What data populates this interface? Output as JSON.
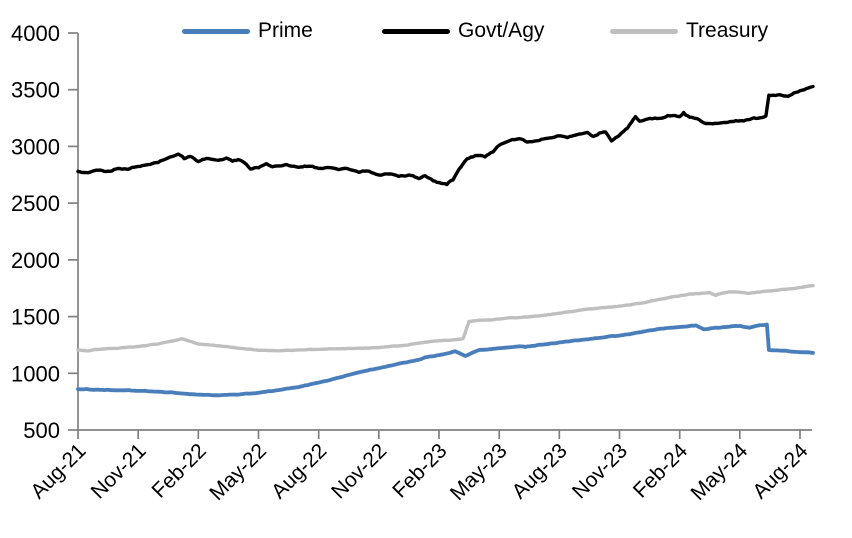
{
  "chart_data": {
    "type": "line",
    "title": "",
    "xlabel": "",
    "ylabel": "",
    "ylim": [
      500,
      4000
    ],
    "yticks": [
      500,
      1000,
      1500,
      2000,
      2500,
      3000,
      3500,
      4000
    ],
    "xtick_labels": [
      "Aug-21",
      "Nov-21",
      "Feb-22",
      "May-22",
      "Aug-22",
      "Nov-22",
      "Feb-23",
      "May-23",
      "Aug-23",
      "Nov-23",
      "Feb-24",
      "May-24",
      "Aug-24"
    ],
    "xtick_positions_months": [
      0,
      3,
      6,
      9,
      12,
      15,
      18,
      21,
      24,
      27,
      30,
      33,
      36
    ],
    "x_unit": "months since Aug-2021",
    "grid": "off",
    "legend_position": "top",
    "axis_color": "#808080",
    "text_color": "#000000",
    "background_color": "#ffffff",
    "series": [
      {
        "name": "Prime",
        "color": "#4a7ebb",
        "points": [
          [
            0,
            860
          ],
          [
            1,
            855
          ],
          [
            2,
            850
          ],
          [
            3,
            845
          ],
          [
            4,
            838
          ],
          [
            5,
            825
          ],
          [
            6,
            812
          ],
          [
            7,
            806
          ],
          [
            8,
            812
          ],
          [
            9,
            828
          ],
          [
            10,
            852
          ],
          [
            11,
            878
          ],
          [
            12,
            918
          ],
          [
            13,
            962
          ],
          [
            14,
            1008
          ],
          [
            15,
            1045
          ],
          [
            16,
            1085
          ],
          [
            17,
            1120
          ],
          [
            17.3,
            1140
          ],
          [
            18,
            1160
          ],
          [
            18.8,
            1195
          ],
          [
            19.3,
            1152
          ],
          [
            20,
            1205
          ],
          [
            20.5,
            1212
          ],
          [
            21,
            1222
          ],
          [
            21.5,
            1228
          ],
          [
            22,
            1238
          ],
          [
            22.3,
            1232
          ],
          [
            23,
            1252
          ],
          [
            23.5,
            1260
          ],
          [
            24,
            1272
          ],
          [
            25,
            1292
          ],
          [
            26,
            1312
          ],
          [
            27,
            1332
          ],
          [
            27.5,
            1345
          ],
          [
            28,
            1362
          ],
          [
            28.5,
            1378
          ],
          [
            29,
            1392
          ],
          [
            29.5,
            1400
          ],
          [
            30,
            1408
          ],
          [
            30.8,
            1422
          ],
          [
            31.2,
            1388
          ],
          [
            31.6,
            1398
          ],
          [
            32,
            1402
          ],
          [
            32.5,
            1412
          ],
          [
            33,
            1418
          ],
          [
            33.5,
            1402
          ],
          [
            34,
            1425
          ],
          [
            34.35,
            1430
          ],
          [
            34.45,
            1205
          ],
          [
            35,
            1200
          ],
          [
            35.5,
            1193
          ],
          [
            36,
            1186
          ],
          [
            36.65,
            1180
          ]
        ]
      },
      {
        "name": "Govt/Agy",
        "color": "#000000",
        "points": [
          [
            0,
            2780
          ],
          [
            0.5,
            2768
          ],
          [
            1,
            2790
          ],
          [
            1.5,
            2782
          ],
          [
            2,
            2806
          ],
          [
            2.5,
            2798
          ],
          [
            3,
            2824
          ],
          [
            3.5,
            2840
          ],
          [
            4,
            2858
          ],
          [
            4.5,
            2900
          ],
          [
            5,
            2932
          ],
          [
            5.3,
            2892
          ],
          [
            5.6,
            2912
          ],
          [
            6,
            2866
          ],
          [
            6.4,
            2894
          ],
          [
            7,
            2878
          ],
          [
            7.4,
            2898
          ],
          [
            7.7,
            2870
          ],
          [
            8,
            2884
          ],
          [
            8.3,
            2856
          ],
          [
            8.6,
            2800
          ],
          [
            9,
            2812
          ],
          [
            9.4,
            2848
          ],
          [
            9.7,
            2820
          ],
          [
            10,
            2828
          ],
          [
            10.4,
            2840
          ],
          [
            11,
            2816
          ],
          [
            11.5,
            2826
          ],
          [
            12,
            2806
          ],
          [
            12.4,
            2814
          ],
          [
            13,
            2796
          ],
          [
            13.4,
            2806
          ],
          [
            14,
            2772
          ],
          [
            14.4,
            2784
          ],
          [
            15,
            2748
          ],
          [
            15.4,
            2758
          ],
          [
            16,
            2736
          ],
          [
            16.5,
            2748
          ],
          [
            17,
            2716
          ],
          [
            17.3,
            2742
          ],
          [
            17.7,
            2698
          ],
          [
            18,
            2682
          ],
          [
            18.4,
            2664
          ],
          [
            18.7,
            2705
          ],
          [
            19,
            2800
          ],
          [
            19.4,
            2890
          ],
          [
            19.7,
            2908
          ],
          [
            20,
            2920
          ],
          [
            20.3,
            2908
          ],
          [
            20.7,
            2952
          ],
          [
            21,
            3010
          ],
          [
            21.3,
            3035
          ],
          [
            22,
            3068
          ],
          [
            22.4,
            3038
          ],
          [
            23,
            3052
          ],
          [
            23.4,
            3072
          ],
          [
            24,
            3094
          ],
          [
            24.4,
            3078
          ],
          [
            25,
            3110
          ],
          [
            25.4,
            3124
          ],
          [
            25.7,
            3088
          ],
          [
            26,
            3118
          ],
          [
            26.3,
            3128
          ],
          [
            26.6,
            3048
          ],
          [
            27,
            3098
          ],
          [
            27.4,
            3162
          ],
          [
            27.8,
            3262
          ],
          [
            28,
            3222
          ],
          [
            28.4,
            3242
          ],
          [
            29,
            3248
          ],
          [
            29.4,
            3272
          ],
          [
            30,
            3262
          ],
          [
            30.2,
            3298
          ],
          [
            30.5,
            3258
          ],
          [
            31,
            3232
          ],
          [
            31.3,
            3202
          ],
          [
            32,
            3206
          ],
          [
            32.5,
            3218
          ],
          [
            33,
            3226
          ],
          [
            33.5,
            3238
          ],
          [
            34,
            3252
          ],
          [
            34.3,
            3268
          ],
          [
            34.45,
            3452
          ],
          [
            35,
            3456
          ],
          [
            35.4,
            3442
          ],
          [
            35.7,
            3472
          ],
          [
            36,
            3490
          ],
          [
            36.3,
            3508
          ],
          [
            36.65,
            3528
          ]
        ]
      },
      {
        "name": "Treasury",
        "color": "#bfbfbf",
        "points": [
          [
            0,
            1205
          ],
          [
            0.5,
            1197
          ],
          [
            1,
            1210
          ],
          [
            2,
            1220
          ],
          [
            3,
            1236
          ],
          [
            4,
            1258
          ],
          [
            5,
            1296
          ],
          [
            5.2,
            1304
          ],
          [
            6,
            1258
          ],
          [
            7,
            1242
          ],
          [
            8,
            1221
          ],
          [
            9,
            1203
          ],
          [
            10,
            1198
          ],
          [
            11,
            1206
          ],
          [
            12,
            1211
          ],
          [
            13,
            1216
          ],
          [
            14,
            1221
          ],
          [
            15,
            1226
          ],
          [
            16,
            1241
          ],
          [
            17,
            1266
          ],
          [
            18,
            1286
          ],
          [
            19,
            1300
          ],
          [
            19.2,
            1306
          ],
          [
            19.5,
            1458
          ],
          [
            20,
            1468
          ],
          [
            21,
            1479
          ],
          [
            22,
            1491
          ],
          [
            23,
            1506
          ],
          [
            24,
            1530
          ],
          [
            25,
            1556
          ],
          [
            26,
            1576
          ],
          [
            27,
            1592
          ],
          [
            27.5,
            1602
          ],
          [
            28,
            1616
          ],
          [
            28.5,
            1634
          ],
          [
            29,
            1652
          ],
          [
            30,
            1682
          ],
          [
            30.5,
            1700
          ],
          [
            31,
            1702
          ],
          [
            31.5,
            1712
          ],
          [
            31.8,
            1686
          ],
          [
            32,
            1700
          ],
          [
            32.5,
            1718
          ],
          [
            33,
            1715
          ],
          [
            33.4,
            1704
          ],
          [
            34,
            1716
          ],
          [
            34.5,
            1725
          ],
          [
            35,
            1736
          ],
          [
            35.5,
            1745
          ],
          [
            36,
            1756
          ],
          [
            36.65,
            1772
          ]
        ]
      }
    ]
  },
  "legend": {
    "items": [
      {
        "label": "Prime"
      },
      {
        "label": "Govt/Agy"
      },
      {
        "label": "Treasury"
      }
    ]
  }
}
